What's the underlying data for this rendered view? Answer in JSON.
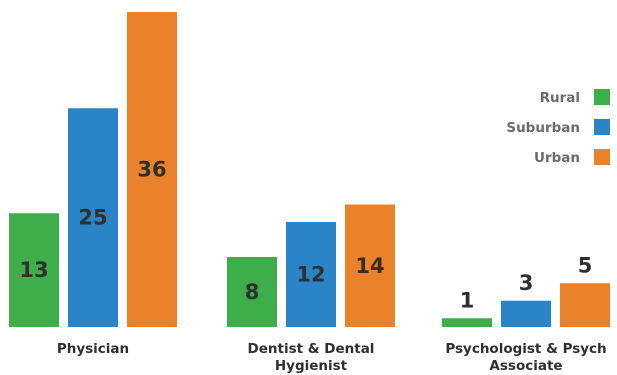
{
  "chart_data": {
    "type": "bar",
    "title": "",
    "xlabel": "",
    "ylabel": "",
    "ylim": [
      0,
      36
    ],
    "grid": false,
    "legend_position": "right",
    "categories": [
      [
        "Physician"
      ],
      [
        "Dentist & Dental",
        "Hygienist"
      ],
      [
        "Psychologist & Psych",
        "Associate"
      ]
    ],
    "series": [
      {
        "name": "Rural",
        "color": "#3dae4a",
        "values": [
          13,
          8,
          1
        ]
      },
      {
        "name": "Suburban",
        "color": "#2b84c8",
        "values": [
          25,
          12,
          3
        ]
      },
      {
        "name": "Urban",
        "color": "#e9822a",
        "values": [
          36,
          14,
          5
        ]
      }
    ]
  }
}
